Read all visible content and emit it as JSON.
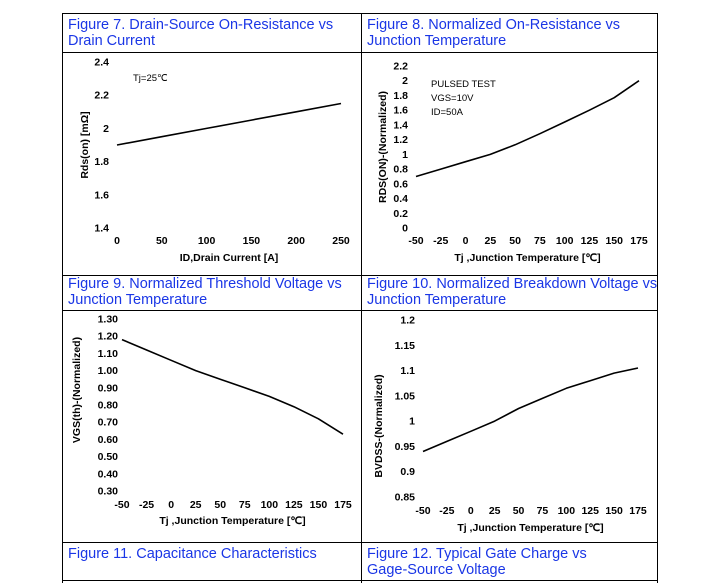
{
  "captions": {
    "fig7": [
      "Figure 7. Drain-Source On-Resistance vs",
      "Drain Current"
    ],
    "fig8": [
      "Figure 8. Normalized On-Resistance vs",
      "Junction Temperature"
    ],
    "fig9": [
      "Figure 9. Normalized Threshold Voltage vs",
      "Junction Temperature"
    ],
    "fig10": [
      "Figure 10. Normalized Breakdown Voltage vs",
      "Junction Temperature"
    ],
    "fig11": [
      "Figure 11. Capacitance Characteristics"
    ],
    "fig12": [
      "Figure 12. Typical Gate Charge vs",
      "Gage-Source Voltage"
    ]
  },
  "chart_data": [
    {
      "id": "fig7",
      "type": "line",
      "title": "Figure 7. Drain-Source On-Resistance vs Drain Current",
      "xlabel": "ID,Drain Current [A]",
      "ylabel": "Rds(on) [mΩ]",
      "xlim": [
        0,
        250
      ],
      "ylim": [
        1.4,
        2.4
      ],
      "xticks": [
        0,
        50,
        100,
        150,
        200,
        250
      ],
      "xtick_labels": [
        "0",
        "50",
        "100",
        "150",
        "200",
        "250"
      ],
      "yticks": [
        1.4,
        1.6,
        1.8,
        2,
        2.2,
        2.4
      ],
      "ytick_labels": [
        "1.4",
        "1.6",
        "1.8",
        "2",
        "2.2",
        "2.4"
      ],
      "annotations": [
        "Tj=25℃"
      ],
      "series": [
        {
          "name": "Rds(on)",
          "x": [
            0,
            50,
            100,
            150,
            200,
            250
          ],
          "y": [
            1.9,
            1.95,
            2.0,
            2.05,
            2.1,
            2.15
          ]
        }
      ]
    },
    {
      "id": "fig8",
      "type": "line",
      "title": "Figure 8. Normalized On-Resistance vs Junction Temperature",
      "xlabel": "Tj ,Junction Temperature [℃]",
      "ylabel": "RDS(ON)-(Normalized)",
      "xlim": [
        -50,
        175
      ],
      "ylim": [
        0,
        2.2
      ],
      "xticks": [
        -50,
        -25,
        0,
        25,
        50,
        75,
        100,
        125,
        150,
        175
      ],
      "xtick_labels": [
        "-50",
        "-25",
        "0",
        "25",
        "50",
        "75",
        "100",
        "125",
        "150",
        "175"
      ],
      "yticks": [
        0,
        0.2,
        0.4,
        0.6,
        0.8,
        1,
        1.2,
        1.4,
        1.6,
        1.8,
        2,
        2.2
      ],
      "ytick_labels": [
        "0",
        "0.2",
        "0.4",
        "0.6",
        "0.8",
        "1",
        "1.2",
        "1.4",
        "1.6",
        "1.8",
        "2",
        "2.2"
      ],
      "annotations": [
        "PULSED TEST",
        "VGS=10V",
        "ID=50A"
      ],
      "series": [
        {
          "name": "RDS(ON)",
          "x": [
            -50,
            -25,
            0,
            25,
            50,
            75,
            100,
            125,
            150,
            175
          ],
          "y": [
            0.7,
            0.8,
            0.9,
            1.0,
            1.13,
            1.28,
            1.44,
            1.6,
            1.77,
            2.0
          ]
        }
      ]
    },
    {
      "id": "fig9",
      "type": "line",
      "title": "Figure 9. Normalized Threshold Voltage vs Junction Temperature",
      "xlabel": "Tj ,Junction Temperature [℃]",
      "ylabel": "VGS(th)-(Normalized)",
      "xlim": [
        -50,
        175
      ],
      "ylim": [
        0.3,
        1.3
      ],
      "xticks": [
        -50,
        -25,
        0,
        25,
        50,
        75,
        100,
        125,
        150,
        175
      ],
      "xtick_labels": [
        "-50",
        "-25",
        "0",
        "25",
        "50",
        "75",
        "100",
        "125",
        "150",
        "175"
      ],
      "yticks": [
        0.3,
        0.4,
        0.5,
        0.6,
        0.7,
        0.8,
        0.9,
        1.0,
        1.1,
        1.2,
        1.3
      ],
      "ytick_labels": [
        "0.30",
        "0.40",
        "0.50",
        "0.60",
        "0.70",
        "0.80",
        "0.90",
        "1.00",
        "1.10",
        "1.20",
        "1.30"
      ],
      "series": [
        {
          "name": "VGS(th)",
          "x": [
            -50,
            -25,
            0,
            25,
            50,
            75,
            100,
            125,
            150,
            175
          ],
          "y": [
            1.18,
            1.12,
            1.06,
            1.0,
            0.95,
            0.9,
            0.85,
            0.79,
            0.72,
            0.63
          ]
        }
      ]
    },
    {
      "id": "fig10",
      "type": "line",
      "title": "Figure 10. Normalized Breakdown Voltage vs Junction Temperature",
      "xlabel": "Tj ,Junction Temperature [℃]",
      "ylabel": "BVDSS-(Normalized)",
      "xlim": [
        -50,
        175
      ],
      "ylim": [
        0.85,
        1.2
      ],
      "xticks": [
        -50,
        -25,
        0,
        25,
        50,
        75,
        100,
        125,
        150,
        175
      ],
      "xtick_labels": [
        "-50",
        "-25",
        "0",
        "25",
        "50",
        "75",
        "100",
        "125",
        "150",
        "175"
      ],
      "yticks": [
        0.85,
        0.9,
        0.95,
        1,
        1.05,
        1.1,
        1.15,
        1.2
      ],
      "ytick_labels": [
        "0.85",
        "0.9",
        "0.95",
        "1",
        "1.05",
        "1.1",
        "1.15",
        "1.2"
      ],
      "series": [
        {
          "name": "BVDSS",
          "x": [
            -50,
            -25,
            0,
            25,
            50,
            75,
            100,
            125,
            150,
            175
          ],
          "y": [
            0.94,
            0.96,
            0.98,
            1.0,
            1.025,
            1.045,
            1.065,
            1.08,
            1.095,
            1.105
          ]
        }
      ]
    }
  ]
}
